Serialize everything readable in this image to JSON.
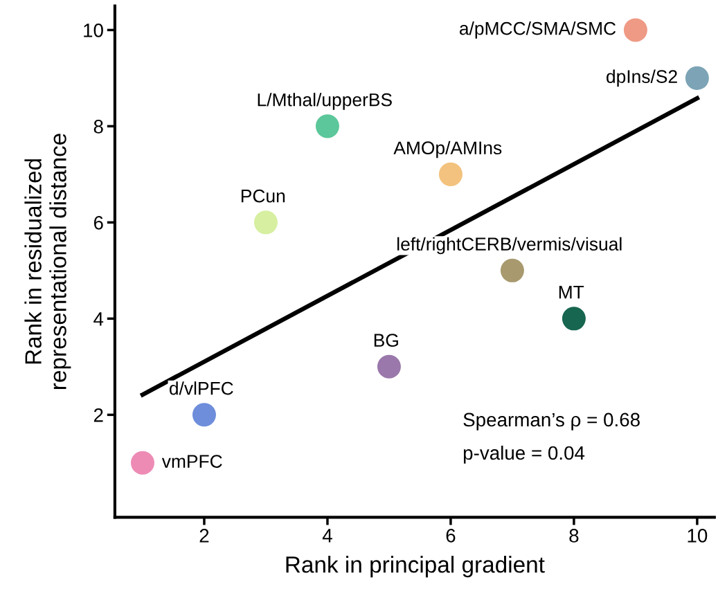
{
  "chart_data": {
    "type": "scatter",
    "xlabel": "Rank in principal gradient",
    "ylabel": "Rank in residualized\nrepresentational distance",
    "x": [
      1,
      2,
      3,
      4,
      5,
      6,
      7,
      8,
      9,
      10
    ],
    "series": [
      {
        "marker": "circle",
        "values": [
          1,
          2,
          6,
          8,
          3,
          7,
          5,
          4,
          10,
          9
        ],
        "colors": [
          "#ee8bb5",
          "#6e8edb",
          "#d6efa0",
          "#5cc79a",
          "#9a78ab",
          "#f3c27e",
          "#a89a6e",
          "#17664f",
          "#ef9a85",
          "#7ca4b6"
        ]
      },
      {
        "type": "line",
        "x": [
          1,
          10
        ],
        "values": [
          2.42,
          8.58
        ],
        "color": "#000000"
      }
    ],
    "annotations": [
      {
        "text": "vmPFC",
        "x": 1,
        "y": 1
      },
      {
        "text": "d/vlPFC",
        "x": 2,
        "y": 2
      },
      {
        "text": "PCun",
        "x": 3,
        "y": 6
      },
      {
        "text": "L/Mthal/upperBS",
        "x": 4,
        "y": 8
      },
      {
        "text": "BG",
        "x": 5,
        "y": 3
      },
      {
        "text": "AMOp/AMIns",
        "x": 6,
        "y": 7
      },
      {
        "text": "left/rightCERB/vermis/visual",
        "x": 7,
        "y": 5
      },
      {
        "text": "MT",
        "x": 8,
        "y": 4
      },
      {
        "text": "a/pMCC/SMA/SMC",
        "x": 9,
        "y": 10
      },
      {
        "text": "dpIns/S2",
        "x": 10,
        "y": 9
      },
      "Spearman’s ρ = 0.68",
      "p-value = 0.04"
    ],
    "xlim": [
      0.55,
      10.28
    ],
    "ylim": [
      -0.13,
      10.5
    ],
    "xticks": [
      2,
      4,
      6,
      8,
      10
    ],
    "yticks": [
      2,
      4,
      6,
      8,
      10
    ],
    "grid": false,
    "legend": false,
    "line_style": "solid"
  }
}
